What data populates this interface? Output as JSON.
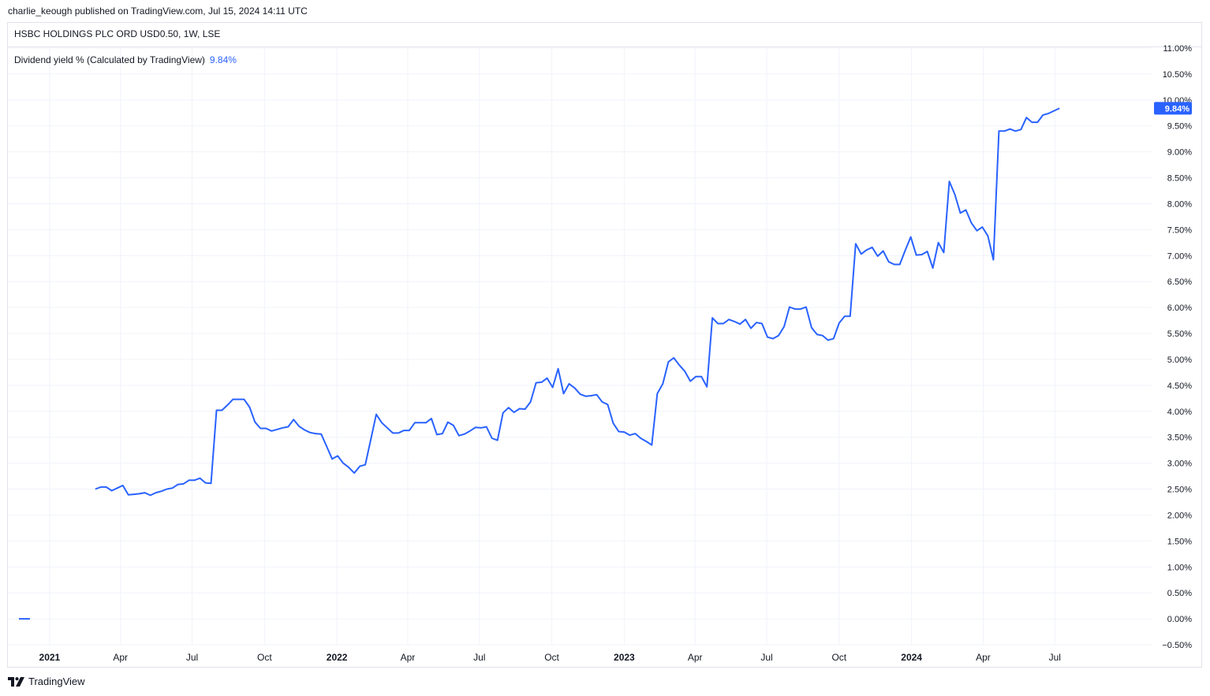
{
  "header": {
    "published_line": "charlie_keough published on TradingView.com, Jul 15, 2024 14:11 UTC"
  },
  "symbol": {
    "title": "HSBC HOLDINGS PLC ORD USD0.50, 1W, LSE"
  },
  "indicator": {
    "label": "Dividend yield % (Calculated by TradingView)",
    "value": "9.84%"
  },
  "footer": {
    "brand": "TradingView",
    "logo_icon": "tradingview-logo-icon"
  },
  "colors": {
    "line": "#2962ff",
    "grid": "#f0f3fa",
    "frame": "#e0e3eb",
    "text": "#131722"
  },
  "chart_data": {
    "type": "line",
    "title": "HSBC HOLDINGS PLC ORD USD0.50, 1W, LSE",
    "series": [
      {
        "name": "Dividend yield % (Calculated by TradingView)",
        "last_value_label": "9.84%",
        "points": [
          [
            "2020-11-23",
            0.0
          ],
          [
            "2020-11-30",
            0.0
          ],
          [
            "2020-12-07",
            0.0
          ],
          [
            "2021-02-28",
            2.5
          ],
          [
            "2021-03-07",
            2.54
          ],
          [
            "2021-03-14",
            2.54
          ],
          [
            "2021-03-21",
            2.47
          ],
          [
            "2021-03-28",
            2.52
          ],
          [
            "2021-04-04",
            2.57
          ],
          [
            "2021-04-11",
            2.39
          ],
          [
            "2021-04-18",
            2.4
          ],
          [
            "2021-04-25",
            2.41
          ],
          [
            "2021-05-02",
            2.43
          ],
          [
            "2021-05-09",
            2.38
          ],
          [
            "2021-05-16",
            2.43
          ],
          [
            "2021-05-23",
            2.46
          ],
          [
            "2021-05-30",
            2.5
          ],
          [
            "2021-06-06",
            2.52
          ],
          [
            "2021-06-13",
            2.59
          ],
          [
            "2021-06-20",
            2.6
          ],
          [
            "2021-06-27",
            2.67
          ],
          [
            "2021-07-04",
            2.67
          ],
          [
            "2021-07-11",
            2.71
          ],
          [
            "2021-07-18",
            2.62
          ],
          [
            "2021-07-25",
            2.61
          ],
          [
            "2021-08-01",
            4.02
          ],
          [
            "2021-08-08",
            4.02
          ],
          [
            "2021-08-15",
            4.12
          ],
          [
            "2021-08-22",
            4.23
          ],
          [
            "2021-08-29",
            4.23
          ],
          [
            "2021-09-05",
            4.23
          ],
          [
            "2021-09-12",
            4.08
          ],
          [
            "2021-09-19",
            3.79
          ],
          [
            "2021-09-26",
            3.67
          ],
          [
            "2021-10-03",
            3.67
          ],
          [
            "2021-10-10",
            3.62
          ],
          [
            "2021-10-17",
            3.65
          ],
          [
            "2021-10-24",
            3.68
          ],
          [
            "2021-10-31",
            3.7
          ],
          [
            "2021-11-07",
            3.84
          ],
          [
            "2021-11-14",
            3.71
          ],
          [
            "2021-11-21",
            3.64
          ],
          [
            "2021-11-28",
            3.59
          ],
          [
            "2021-12-05",
            3.57
          ],
          [
            "2021-12-12",
            3.56
          ],
          [
            "2021-12-19",
            3.32
          ],
          [
            "2021-12-26",
            3.08
          ],
          [
            "2022-01-02",
            3.14
          ],
          [
            "2022-01-09",
            3.0
          ],
          [
            "2022-01-16",
            2.92
          ],
          [
            "2022-01-23",
            2.81
          ],
          [
            "2022-01-30",
            2.94
          ],
          [
            "2022-02-06",
            2.97
          ],
          [
            "2022-02-13",
            3.45
          ],
          [
            "2022-02-20",
            3.94
          ],
          [
            "2022-02-27",
            3.78
          ],
          [
            "2022-03-06",
            3.68
          ],
          [
            "2022-03-13",
            3.58
          ],
          [
            "2022-03-20",
            3.58
          ],
          [
            "2022-03-27",
            3.63
          ],
          [
            "2022-04-03",
            3.63
          ],
          [
            "2022-04-10",
            3.78
          ],
          [
            "2022-04-17",
            3.78
          ],
          [
            "2022-04-24",
            3.78
          ],
          [
            "2022-05-01",
            3.86
          ],
          [
            "2022-05-08",
            3.55
          ],
          [
            "2022-05-15",
            3.57
          ],
          [
            "2022-05-22",
            3.79
          ],
          [
            "2022-05-29",
            3.73
          ],
          [
            "2022-06-05",
            3.53
          ],
          [
            "2022-06-12",
            3.56
          ],
          [
            "2022-06-19",
            3.62
          ],
          [
            "2022-06-26",
            3.69
          ],
          [
            "2022-07-03",
            3.68
          ],
          [
            "2022-07-10",
            3.7
          ],
          [
            "2022-07-17",
            3.48
          ],
          [
            "2022-07-24",
            3.44
          ],
          [
            "2022-07-31",
            3.97
          ],
          [
            "2022-08-07",
            4.07
          ],
          [
            "2022-08-14",
            3.98
          ],
          [
            "2022-08-21",
            4.05
          ],
          [
            "2022-08-28",
            4.04
          ],
          [
            "2022-09-04",
            4.18
          ],
          [
            "2022-09-11",
            4.55
          ],
          [
            "2022-09-18",
            4.56
          ],
          [
            "2022-09-25",
            4.64
          ],
          [
            "2022-10-02",
            4.46
          ],
          [
            "2022-10-09",
            4.82
          ],
          [
            "2022-10-16",
            4.34
          ],
          [
            "2022-10-23",
            4.53
          ],
          [
            "2022-10-30",
            4.45
          ],
          [
            "2022-11-06",
            4.33
          ],
          [
            "2022-11-13",
            4.29
          ],
          [
            "2022-11-20",
            4.3
          ],
          [
            "2022-11-27",
            4.32
          ],
          [
            "2022-12-04",
            4.18
          ],
          [
            "2022-12-11",
            4.13
          ],
          [
            "2022-12-18",
            3.77
          ],
          [
            "2022-12-25",
            3.61
          ],
          [
            "2023-01-01",
            3.6
          ],
          [
            "2023-01-08",
            3.54
          ],
          [
            "2023-01-15",
            3.57
          ],
          [
            "2023-01-22",
            3.48
          ],
          [
            "2023-01-29",
            3.42
          ],
          [
            "2023-02-05",
            3.35
          ],
          [
            "2023-02-12",
            4.34
          ],
          [
            "2023-02-19",
            4.53
          ],
          [
            "2023-02-26",
            4.95
          ],
          [
            "2023-03-05",
            5.03
          ],
          [
            "2023-03-12",
            4.89
          ],
          [
            "2023-03-19",
            4.77
          ],
          [
            "2023-03-26",
            4.58
          ],
          [
            "2023-04-02",
            4.67
          ],
          [
            "2023-04-09",
            4.67
          ],
          [
            "2023-04-16",
            4.47
          ],
          [
            "2023-04-23",
            5.8
          ],
          [
            "2023-04-30",
            5.69
          ],
          [
            "2023-05-07",
            5.69
          ],
          [
            "2023-05-14",
            5.77
          ],
          [
            "2023-05-21",
            5.73
          ],
          [
            "2023-05-28",
            5.68
          ],
          [
            "2023-06-04",
            5.77
          ],
          [
            "2023-06-11",
            5.6
          ],
          [
            "2023-06-18",
            5.71
          ],
          [
            "2023-06-25",
            5.69
          ],
          [
            "2023-07-02",
            5.43
          ],
          [
            "2023-07-09",
            5.4
          ],
          [
            "2023-07-16",
            5.46
          ],
          [
            "2023-07-23",
            5.63
          ],
          [
            "2023-07-30",
            6.01
          ],
          [
            "2023-08-06",
            5.97
          ],
          [
            "2023-08-13",
            5.97
          ],
          [
            "2023-08-20",
            6.01
          ],
          [
            "2023-08-27",
            5.61
          ],
          [
            "2023-09-03",
            5.48
          ],
          [
            "2023-09-10",
            5.46
          ],
          [
            "2023-09-17",
            5.37
          ],
          [
            "2023-09-24",
            5.4
          ],
          [
            "2023-10-01",
            5.7
          ],
          [
            "2023-10-08",
            5.83
          ],
          [
            "2023-10-15",
            5.83
          ],
          [
            "2023-10-22",
            7.23
          ],
          [
            "2023-10-29",
            7.03
          ],
          [
            "2023-11-05",
            7.11
          ],
          [
            "2023-11-12",
            7.16
          ],
          [
            "2023-11-19",
            6.99
          ],
          [
            "2023-11-26",
            7.09
          ],
          [
            "2023-12-03",
            6.88
          ],
          [
            "2023-12-10",
            6.83
          ],
          [
            "2023-12-17",
            6.83
          ],
          [
            "2023-12-24",
            7.1
          ],
          [
            "2023-12-31",
            7.36
          ],
          [
            "2024-01-07",
            7.01
          ],
          [
            "2024-01-14",
            7.02
          ],
          [
            "2024-01-21",
            7.08
          ],
          [
            "2024-01-28",
            6.76
          ],
          [
            "2024-02-04",
            7.25
          ],
          [
            "2024-02-11",
            7.06
          ],
          [
            "2024-02-18",
            8.43
          ],
          [
            "2024-02-25",
            8.18
          ],
          [
            "2024-03-03",
            7.82
          ],
          [
            "2024-03-10",
            7.88
          ],
          [
            "2024-03-17",
            7.63
          ],
          [
            "2024-03-24",
            7.48
          ],
          [
            "2024-03-31",
            7.55
          ],
          [
            "2024-04-07",
            7.38
          ],
          [
            "2024-04-14",
            6.92
          ],
          [
            "2024-04-21",
            9.4
          ],
          [
            "2024-04-28",
            9.4
          ],
          [
            "2024-05-05",
            9.44
          ],
          [
            "2024-05-12",
            9.4
          ],
          [
            "2024-05-19",
            9.43
          ],
          [
            "2024-05-26",
            9.66
          ],
          [
            "2024-06-02",
            9.57
          ],
          [
            "2024-06-09",
            9.57
          ],
          [
            "2024-06-16",
            9.71
          ],
          [
            "2024-06-23",
            9.74
          ],
          [
            "2024-07-07",
            9.84
          ]
        ]
      }
    ],
    "x_axis": {
      "type": "date",
      "range": [
        "2020-11-09",
        "2024-10-28"
      ],
      "ticks": [
        {
          "date": "2021-01-01",
          "label": "2021",
          "bold": true
        },
        {
          "date": "2021-04-01",
          "label": "Apr",
          "bold": false
        },
        {
          "date": "2021-07-01",
          "label": "Jul",
          "bold": false
        },
        {
          "date": "2021-10-01",
          "label": "Oct",
          "bold": false
        },
        {
          "date": "2022-01-01",
          "label": "2022",
          "bold": true
        },
        {
          "date": "2022-04-01",
          "label": "Apr",
          "bold": false
        },
        {
          "date": "2022-07-01",
          "label": "Jul",
          "bold": false
        },
        {
          "date": "2022-10-01",
          "label": "Oct",
          "bold": false
        },
        {
          "date": "2023-01-01",
          "label": "2023",
          "bold": true
        },
        {
          "date": "2023-04-01",
          "label": "Apr",
          "bold": false
        },
        {
          "date": "2023-07-01",
          "label": "Jul",
          "bold": false
        },
        {
          "date": "2023-10-01",
          "label": "Oct",
          "bold": false
        },
        {
          "date": "2024-01-01",
          "label": "2024",
          "bold": true
        },
        {
          "date": "2024-04-01",
          "label": "Apr",
          "bold": false
        },
        {
          "date": "2024-07-01",
          "label": "Jul",
          "bold": false
        }
      ]
    },
    "y_axis": {
      "unit": "%",
      "range": [
        -0.5,
        11.0
      ],
      "ticks": [
        -0.5,
        0.0,
        0.5,
        1.0,
        1.5,
        2.0,
        2.5,
        3.0,
        3.5,
        4.0,
        4.5,
        5.0,
        5.5,
        6.0,
        6.5,
        7.0,
        7.5,
        8.0,
        8.5,
        9.0,
        9.5,
        10.0,
        10.5,
        11.0
      ],
      "tick_labels": [
        "−0.50%",
        "0.00%",
        "0.50%",
        "1.00%",
        "1.50%",
        "2.00%",
        "2.50%",
        "3.00%",
        "3.50%",
        "4.00%",
        "4.50%",
        "5.00%",
        "5.50%",
        "6.00%",
        "6.50%",
        "7.00%",
        "7.50%",
        "8.00%",
        "8.50%",
        "9.00%",
        "9.50%",
        "10.00%",
        "10.50%",
        "11.00%"
      ],
      "position": "right"
    },
    "grid": true
  }
}
